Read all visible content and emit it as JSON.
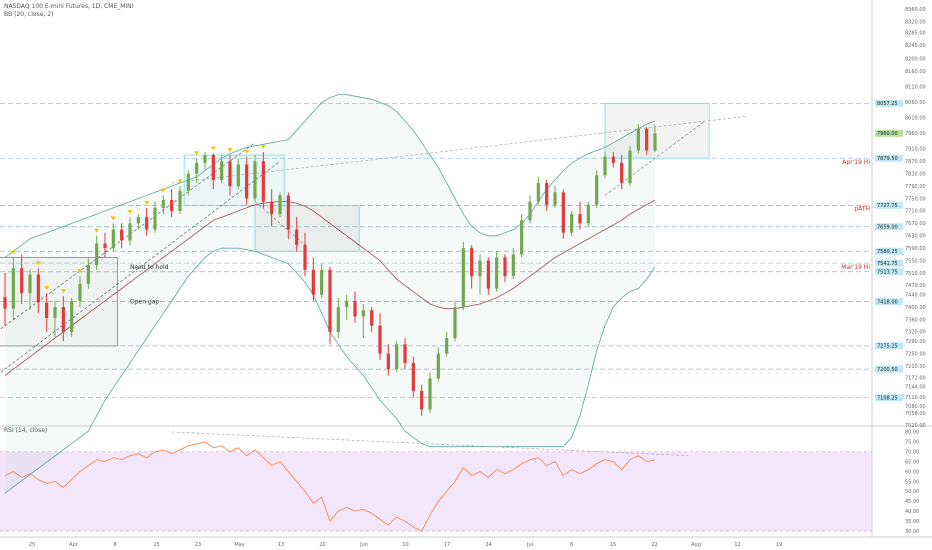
{
  "header": {
    "title": "NASDAQ 100 E-mini Futures, 1D, CME_MINI",
    "indicator": "BB (20, close, 2)",
    "rsi_label": "RSI (14, close)"
  },
  "colors": {
    "up": "#70a850",
    "down": "#e03a3a",
    "bb_band": "#5aa89a",
    "bb_basis": "#9a5050",
    "rsi_line": "#f08a50",
    "rsi_bg": "#f3e6fb",
    "grid_dash": "#8fb8c8",
    "marker": "#f2c500",
    "box": "#7dd8e8",
    "tag_blue": "#bfe8f2",
    "tag_green": "#b8e0a0",
    "annot_red": "#cc3030"
  },
  "chart_data": [
    {
      "type": "ohlc",
      "ylim": [
        7020,
        8390
      ],
      "y_ticks": [
        8360,
        8320,
        8285,
        8245,
        8200,
        8160,
        8110,
        8060,
        8010,
        7960,
        7910,
        7870,
        7830,
        7790,
        7750,
        7710,
        7670,
        7630,
        7590,
        7550,
        7510,
        7470,
        7440,
        7400,
        7360,
        7320,
        7290,
        7250,
        7210,
        7172,
        7144,
        7110,
        7080,
        7058,
        7020
      ],
      "x_ticks": [
        "25",
        "Apr",
        "8",
        "15",
        "23",
        "May",
        "13",
        "20",
        "Jun",
        "10",
        "17",
        "24",
        "Jul",
        "8",
        "15",
        "22",
        "Aug",
        "12",
        "19"
      ],
      "price_tags": [
        {
          "label": "8057.25",
          "value": 8057,
          "kind": "level"
        },
        {
          "label": "7960.00",
          "value": 7960,
          "kind": "last"
        },
        {
          "label": "7879.50",
          "value": 7880,
          "kind": "level"
        },
        {
          "label": "7727.75",
          "value": 7728,
          "kind": "level"
        },
        {
          "label": "7659.00",
          "value": 7659,
          "kind": "level"
        },
        {
          "label": "7580.25",
          "value": 7580,
          "kind": "level"
        },
        {
          "label": "7541.75",
          "value": 7542,
          "kind": "level"
        },
        {
          "label": "7513.75",
          "value": 7514,
          "kind": "level"
        },
        {
          "label": "7418.00",
          "value": 7418,
          "kind": "level"
        },
        {
          "label": "7275.25",
          "value": 7275,
          "kind": "level"
        },
        {
          "label": "7200.50",
          "value": 7200,
          "kind": "level"
        },
        {
          "label": "7108.25",
          "value": 7108,
          "kind": "level"
        }
      ],
      "annotations": [
        "Apr'19 Hi",
        "pATH",
        "Mar'19 Hi",
        "Need to hold",
        "Open gap"
      ],
      "bars": [
        [
          7432,
          7510,
          7340,
          7395
        ],
        [
          7395,
          7560,
          7360,
          7525
        ],
        [
          7525,
          7570,
          7410,
          7445
        ],
        [
          7445,
          7520,
          7390,
          7505
        ],
        [
          7505,
          7525,
          7380,
          7415
        ],
        [
          7415,
          7445,
          7320,
          7365
        ],
        [
          7365,
          7420,
          7300,
          7400
        ],
        [
          7400,
          7435,
          7290,
          7320
        ],
        [
          7320,
          7430,
          7305,
          7420
        ],
        [
          7420,
          7500,
          7400,
          7475
        ],
        [
          7475,
          7560,
          7460,
          7535
        ],
        [
          7535,
          7630,
          7520,
          7605
        ],
        [
          7605,
          7640,
          7560,
          7590
        ],
        [
          7590,
          7670,
          7580,
          7650
        ],
        [
          7650,
          7670,
          7590,
          7615
        ],
        [
          7615,
          7690,
          7600,
          7670
        ],
        [
          7670,
          7700,
          7650,
          7690
        ],
        [
          7690,
          7720,
          7630,
          7650
        ],
        [
          7650,
          7740,
          7640,
          7720
        ],
        [
          7720,
          7760,
          7700,
          7745
        ],
        [
          7745,
          7780,
          7690,
          7710
        ],
        [
          7710,
          7790,
          7700,
          7775
        ],
        [
          7775,
          7840,
          7760,
          7830
        ],
        [
          7830,
          7880,
          7800,
          7865
        ],
        [
          7865,
          7900,
          7840,
          7890
        ],
        [
          7890,
          7895,
          7780,
          7810
        ],
        [
          7810,
          7890,
          7800,
          7870
        ],
        [
          7870,
          7890,
          7760,
          7790
        ],
        [
          7790,
          7880,
          7780,
          7860
        ],
        [
          7860,
          7885,
          7730,
          7750
        ],
        [
          7750,
          7890,
          7740,
          7870
        ],
        [
          7870,
          7900,
          7720,
          7740
        ],
        [
          7740,
          7780,
          7660,
          7700
        ],
        [
          7700,
          7770,
          7690,
          7760
        ],
        [
          7760,
          7770,
          7620,
          7650
        ],
        [
          7650,
          7690,
          7580,
          7600
        ],
        [
          7600,
          7640,
          7500,
          7520
        ],
        [
          7520,
          7560,
          7420,
          7440
        ],
        [
          7440,
          7540,
          7430,
          7520
        ],
        [
          7520,
          7530,
          7280,
          7320
        ],
        [
          7320,
          7430,
          7300,
          7400
        ],
        [
          7400,
          7440,
          7360,
          7420
        ],
        [
          7420,
          7450,
          7350,
          7370
        ],
        [
          7370,
          7410,
          7300,
          7390
        ],
        [
          7390,
          7400,
          7320,
          7340
        ],
        [
          7340,
          7380,
          7230,
          7250
        ],
        [
          7250,
          7280,
          7180,
          7200
        ],
        [
          7200,
          7290,
          7190,
          7280
        ],
        [
          7280,
          7300,
          7200,
          7220
        ],
        [
          7220,
          7240,
          7110,
          7130
        ],
        [
          7130,
          7150,
          7050,
          7070
        ],
        [
          7070,
          7190,
          7060,
          7170
        ],
        [
          7170,
          7270,
          7160,
          7250
        ],
        [
          7250,
          7320,
          7240,
          7300
        ],
        [
          7300,
          7420,
          7290,
          7400
        ],
        [
          7400,
          7610,
          7390,
          7590
        ],
        [
          7590,
          7600,
          7460,
          7500
        ],
        [
          7500,
          7570,
          7440,
          7550
        ],
        [
          7550,
          7560,
          7440,
          7460
        ],
        [
          7460,
          7580,
          7450,
          7560
        ],
        [
          7560,
          7570,
          7480,
          7500
        ],
        [
          7500,
          7590,
          7490,
          7570
        ],
        [
          7570,
          7700,
          7560,
          7680
        ],
        [
          7680,
          7760,
          7670,
          7740
        ],
        [
          7740,
          7820,
          7730,
          7800
        ],
        [
          7800,
          7810,
          7710,
          7730
        ],
        [
          7730,
          7790,
          7720,
          7770
        ],
        [
          7770,
          7780,
          7620,
          7640
        ],
        [
          7640,
          7710,
          7630,
          7700
        ],
        [
          7700,
          7740,
          7650,
          7670
        ],
        [
          7670,
          7740,
          7660,
          7730
        ],
        [
          7730,
          7840,
          7720,
          7825
        ],
        [
          7825,
          7900,
          7815,
          7885
        ],
        [
          7885,
          7900,
          7850,
          7865
        ],
        [
          7865,
          7890,
          7780,
          7800
        ],
        [
          7800,
          7920,
          7790,
          7905
        ],
        [
          7905,
          7990,
          7895,
          7975
        ],
        [
          7975,
          7980,
          7890,
          7905
        ],
        [
          7905,
          7985,
          7900,
          7960
        ]
      ],
      "bb_upper": [
        7560,
        7580,
        7600,
        7620,
        7630,
        7640,
        7650,
        7660,
        7670,
        7680,
        7690,
        7700,
        7710,
        7720,
        7730,
        7740,
        7750,
        7760,
        7770,
        7780,
        7790,
        7800,
        7810,
        7820,
        7840,
        7860,
        7880,
        7895,
        7905,
        7915,
        7920,
        7925,
        7930,
        7935,
        7940,
        7970,
        8000,
        8030,
        8060,
        8075,
        8085,
        8085,
        8080,
        8075,
        8070,
        8060,
        8050,
        8030,
        8000,
        7970,
        7930,
        7890,
        7850,
        7800,
        7750,
        7700,
        7660,
        7640,
        7630,
        7630,
        7640,
        7650,
        7670,
        7700,
        7740,
        7780,
        7810,
        7840,
        7865,
        7880,
        7895,
        7905,
        7915,
        7930,
        7945,
        7960,
        7975,
        7990,
        8000
      ],
      "bb_basis": [
        7180,
        7200,
        7220,
        7240,
        7260,
        7280,
        7300,
        7320,
        7340,
        7360,
        7380,
        7400,
        7420,
        7440,
        7460,
        7480,
        7500,
        7520,
        7540,
        7560,
        7580,
        7600,
        7620,
        7640,
        7660,
        7680,
        7690,
        7700,
        7710,
        7720,
        7730,
        7735,
        7738,
        7740,
        7740,
        7735,
        7725,
        7710,
        7690,
        7670,
        7650,
        7630,
        7610,
        7590,
        7570,
        7550,
        7520,
        7490,
        7470,
        7450,
        7430,
        7410,
        7400,
        7395,
        7395,
        7400,
        7405,
        7410,
        7420,
        7430,
        7445,
        7460,
        7480,
        7500,
        7520,
        7540,
        7560,
        7575,
        7590,
        7605,
        7620,
        7635,
        7650,
        7665,
        7680,
        7700,
        7715,
        7730,
        7745
      ],
      "bb_lower": [
        6800,
        6820,
        6840,
        6860,
        6880,
        6900,
        6920,
        6940,
        6960,
        6980,
        7000,
        7050,
        7100,
        7140,
        7180,
        7220,
        7260,
        7300,
        7340,
        7380,
        7420,
        7460,
        7500,
        7530,
        7560,
        7580,
        7590,
        7590,
        7590,
        7585,
        7580,
        7570,
        7560,
        7550,
        7540,
        7510,
        7480,
        7440,
        7380,
        7320,
        7280,
        7240,
        7210,
        7180,
        7140,
        7100,
        7070,
        7040,
        7000,
        6980,
        6960,
        6950,
        6950,
        6950,
        6950,
        6950,
        6950,
        6950,
        6950,
        6950,
        6950,
        6950,
        6950,
        6950,
        6950,
        6950,
        6950,
        6950,
        6980,
        7050,
        7150,
        7260,
        7340,
        7400,
        7430,
        7450,
        7460,
        7490,
        7530
      ]
    },
    {
      "type": "line",
      "ylim": [
        27,
        83
      ],
      "y_ticks": [
        80,
        75,
        70,
        65,
        60,
        55,
        50,
        45,
        40,
        35,
        30
      ],
      "overbought": 70,
      "oversold": 30,
      "rsi": [
        58,
        60,
        57,
        59,
        56,
        54,
        55,
        52,
        56,
        60,
        63,
        66,
        65,
        67,
        66,
        68,
        69,
        67,
        70,
        71,
        69,
        71,
        73,
        74,
        75,
        72,
        73,
        70,
        72,
        68,
        71,
        67,
        63,
        65,
        60,
        55,
        50,
        44,
        47,
        35,
        40,
        42,
        40,
        41,
        39,
        36,
        33,
        37,
        35,
        32,
        30,
        38,
        45,
        50,
        55,
        62,
        58,
        60,
        57,
        61,
        59,
        61,
        64,
        66,
        67,
        63,
        65,
        58,
        61,
        59,
        61,
        64,
        66,
        65,
        61,
        66,
        68,
        65,
        66
      ]
    }
  ]
}
